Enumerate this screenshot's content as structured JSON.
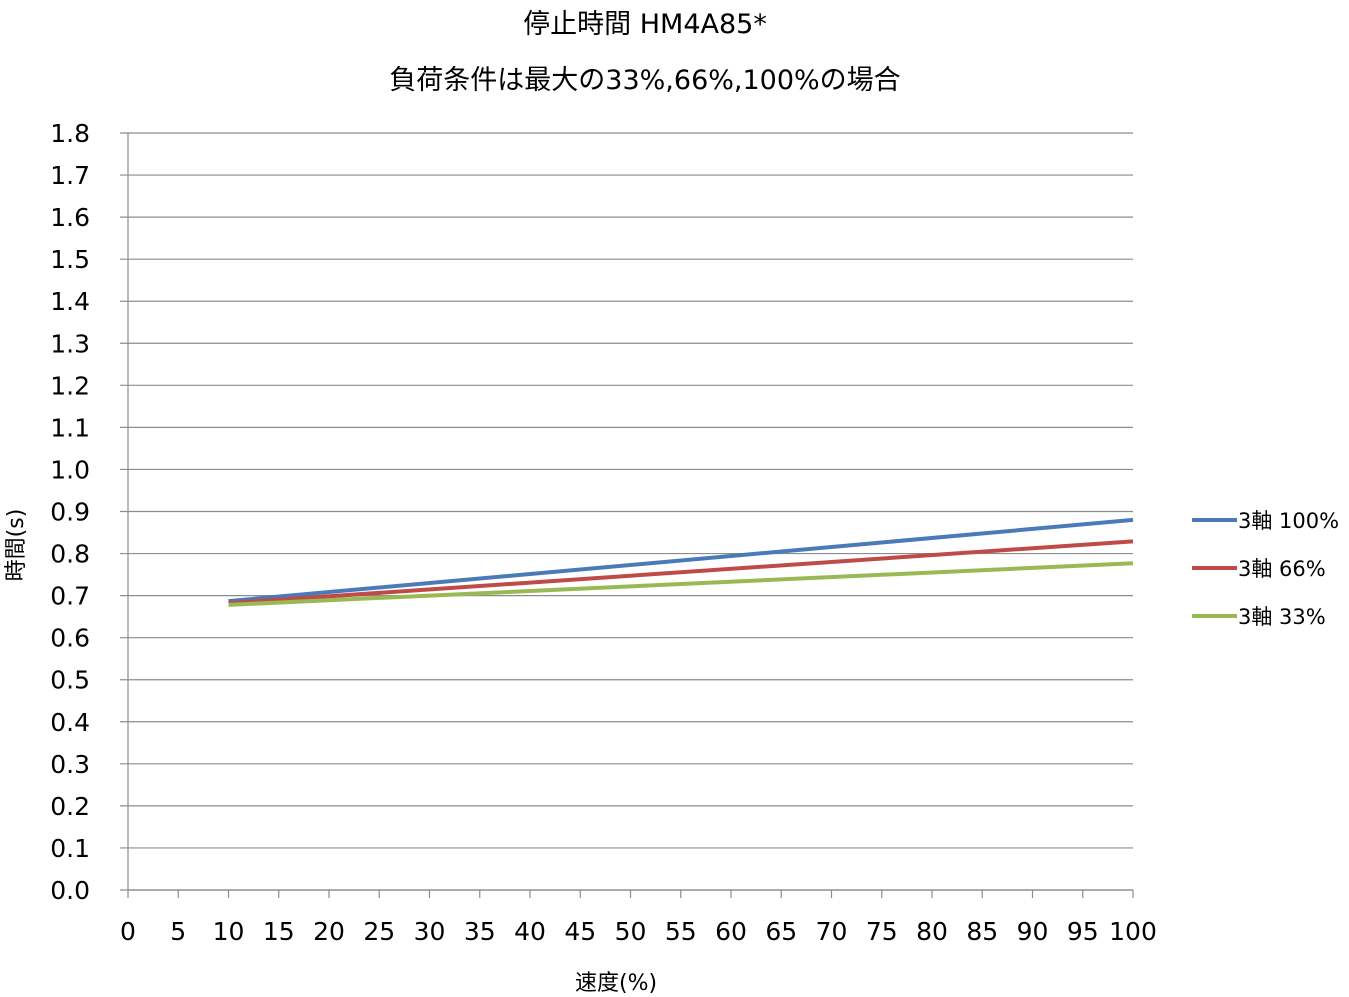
{
  "chart_data": {
    "type": "line",
    "title": "停止時間 HM4A85*",
    "subtitle": "負荷条件は最大の33%,66%,100%の場合",
    "xlabel": "速度(%)",
    "ylabel": "時間(s)",
    "xlim": [
      0,
      100
    ],
    "ylim": [
      0.0,
      1.8
    ],
    "x_ticks": [
      "0",
      "5",
      "10",
      "15",
      "20",
      "25",
      "30",
      "35",
      "40",
      "45",
      "50",
      "55",
      "60",
      "65",
      "70",
      "75",
      "80",
      "85",
      "90",
      "95",
      "100"
    ],
    "y_ticks": [
      "0.0",
      "0.1",
      "0.2",
      "0.3",
      "0.4",
      "0.5",
      "0.6",
      "0.7",
      "0.8",
      "0.9",
      "1.0",
      "1.1",
      "1.2",
      "1.3",
      "1.4",
      "1.5",
      "1.6",
      "1.7",
      "1.8"
    ],
    "grid": "horizontal",
    "legend_position": "right",
    "series": [
      {
        "name": "3軸 100%",
        "color": "#4a7ab8",
        "x": [
          10,
          100
        ],
        "y": [
          0.687,
          0.88
        ]
      },
      {
        "name": "3軸 66%",
        "color": "#be4b48",
        "x": [
          10,
          100
        ],
        "y": [
          0.682,
          0.829
        ]
      },
      {
        "name": "3軸 33%",
        "color": "#98b954",
        "x": [
          10,
          100
        ],
        "y": [
          0.678,
          0.777
        ]
      }
    ]
  }
}
